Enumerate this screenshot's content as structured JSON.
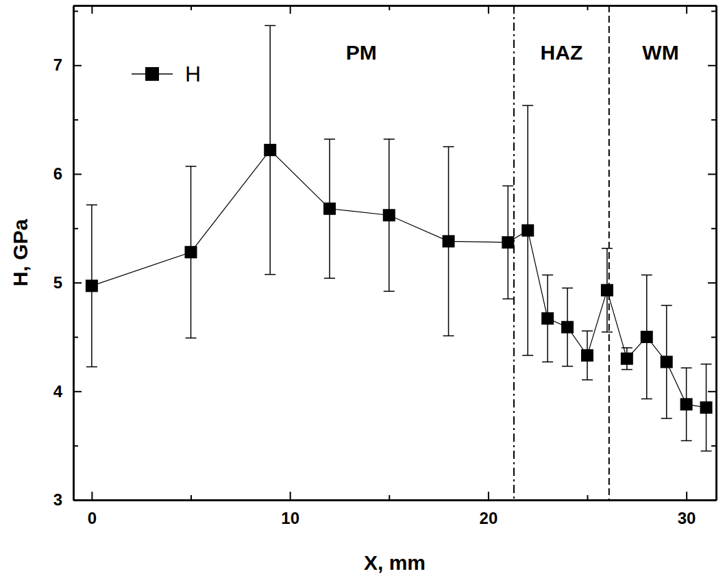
{
  "chart_data": {
    "type": "line",
    "x_label": "X, mm",
    "y_label": "H, GPa",
    "xlim": [
      -0.93,
      31.5
    ],
    "ylim": [
      3,
      7.55
    ],
    "xticks": [
      0,
      10,
      20,
      30
    ],
    "yticks": [
      3,
      4,
      5,
      6,
      7
    ],
    "x_minor_ticks": [
      5,
      15,
      25
    ],
    "y_minor_ticks": [
      3.5,
      4.5,
      5.5,
      6.5,
      7.5
    ],
    "grid": false,
    "legend": "upper left",
    "x": [
      0,
      5,
      9,
      12,
      15,
      18,
      21,
      22,
      23,
      24,
      25,
      26,
      27,
      28,
      29,
      30,
      31
    ],
    "series": [
      {
        "name": "H",
        "color": "#000000",
        "marker": "square",
        "line_style": "solid",
        "values": [
          4.97,
          5.28,
          6.22,
          5.68,
          5.62,
          5.38,
          5.37,
          5.48,
          4.67,
          4.59,
          4.33,
          4.93,
          4.3,
          4.5,
          4.27,
          3.88,
          3.85
        ],
        "errors": [
          0.745,
          0.79,
          1.145,
          0.64,
          0.7,
          0.87,
          0.52,
          1.15,
          0.4,
          0.36,
          0.225,
          0.385,
          0.1,
          0.57,
          0.52,
          0.335,
          0.4
        ]
      }
    ],
    "boundaries": [
      {
        "x": 21.3,
        "line_style": "dash-dot"
      },
      {
        "x": 26.1,
        "line_style": "dashed"
      }
    ],
    "annotations": [
      {
        "text": "PM",
        "x": 13.6,
        "y": 7.05
      },
      {
        "text": "HAZ",
        "x": 23.7,
        "y": 7.05
      },
      {
        "text": "WM",
        "x": 28.7,
        "y": 7.05
      }
    ]
  }
}
